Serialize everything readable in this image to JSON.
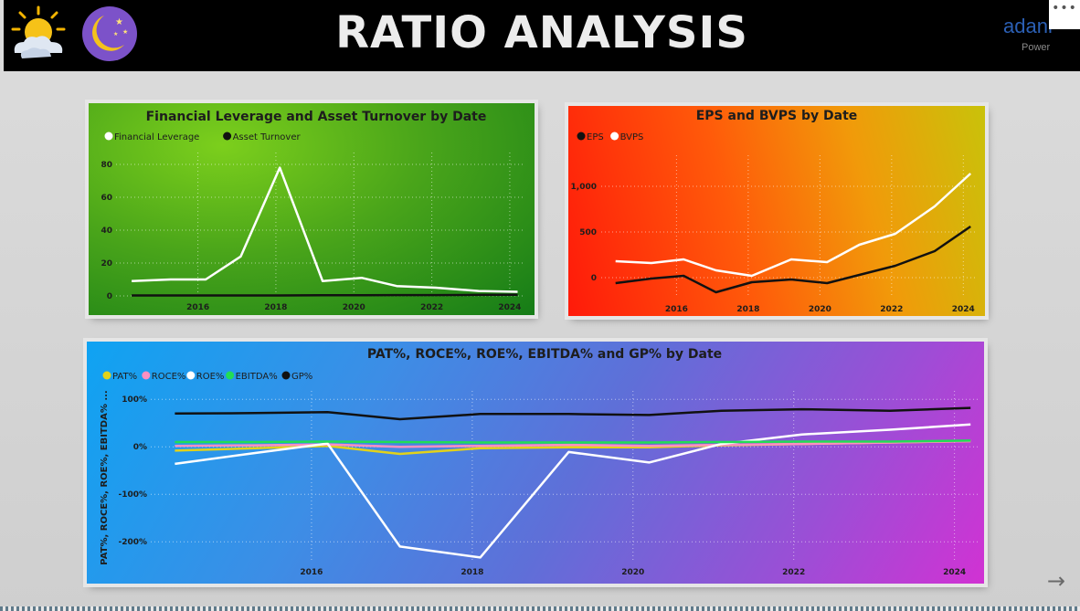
{
  "page": {
    "title": "RATIO ANALYSIS"
  },
  "header": {
    "left_icons": [
      "sun-cloud-icon",
      "moon-stars-icon"
    ],
    "logo": {
      "word": "adani",
      "sub": "Power"
    },
    "more_label": "•••"
  },
  "nav": {
    "next_label": "→"
  },
  "colors": {
    "header_bg": "#000000",
    "page_bg": "#d7d7d7",
    "lev_white": "#ffffff",
    "lev_black": "#111111",
    "pat": "#e2d21a",
    "roce": "#ff8fc1",
    "roe": "#ffffff",
    "ebitda": "#22dd55",
    "gp": "#111111"
  },
  "chart_data": [
    {
      "id": "lev",
      "type": "line",
      "title": "Financial Leverage and Asset Turnover by Date",
      "ylabel": "",
      "xlabel": "",
      "legend_position": "top-left",
      "grid": true,
      "x": [
        2014.3,
        2015.3,
        2016.2,
        2017.1,
        2018.1,
        2019.2,
        2020.2,
        2021.1,
        2022.1,
        2023.2,
        2024.2
      ],
      "xticks": [
        "2016",
        "2018",
        "2020",
        "2022",
        "2024"
      ],
      "xtick_values": [
        2016,
        2018,
        2020,
        2022,
        2024
      ],
      "xlim": [
        2013.9,
        2024.4
      ],
      "yticks": [
        "0",
        "20",
        "40",
        "60",
        "80"
      ],
      "ytick_values": [
        0,
        20,
        40,
        60,
        80
      ],
      "ylim": [
        0,
        85
      ],
      "series": [
        {
          "name": "Financial Leverage",
          "color": "#ffffff",
          "values": [
            9,
            10,
            10,
            24,
            78,
            9,
            11,
            6,
            5,
            3,
            2.5
          ]
        },
        {
          "name": "Asset Turnover",
          "color": "#111111",
          "values": [
            0.3,
            0.3,
            0.3,
            0.3,
            0.3,
            0.4,
            0.4,
            0.5,
            0.5,
            0.6,
            0.7
          ]
        }
      ]
    },
    {
      "id": "eps",
      "type": "line",
      "title": "EPS and BVPS by Date",
      "ylabel": "",
      "xlabel": "",
      "legend_position": "top-left",
      "grid": true,
      "x": [
        2014.3,
        2015.3,
        2016.2,
        2017.1,
        2018.1,
        2019.2,
        2020.2,
        2021.1,
        2022.1,
        2023.2,
        2024.2
      ],
      "xticks": [
        "2016",
        "2018",
        "2020",
        "2022",
        "2024"
      ],
      "xtick_values": [
        2016,
        2018,
        2020,
        2022,
        2024
      ],
      "xlim": [
        2013.9,
        2024.4
      ],
      "yticks": [
        "0",
        "500",
        "1,000"
      ],
      "ytick_values": [
        0,
        500,
        1000
      ],
      "ylim": [
        -200,
        1300
      ],
      "series": [
        {
          "name": "EPS",
          "color": "#111111",
          "values": [
            -60,
            -10,
            20,
            -160,
            -50,
            -20,
            -60,
            30,
            130,
            290,
            560
          ]
        },
        {
          "name": "BVPS",
          "color": "#ffffff",
          "values": [
            180,
            160,
            200,
            80,
            20,
            200,
            170,
            360,
            480,
            780,
            1140
          ]
        }
      ]
    },
    {
      "id": "pat",
      "type": "line",
      "title": "PAT%, ROCE%, ROE%, EBITDA% and GP% by Date",
      "ylabel": "PAT%, ROCE%, ROE%, EBITDA% ...",
      "xlabel": "",
      "legend_position": "top-left",
      "grid": true,
      "x": [
        2014.3,
        2015.3,
        2016.2,
        2017.1,
        2018.1,
        2019.2,
        2020.2,
        2021.1,
        2022.1,
        2023.2,
        2024.2
      ],
      "xticks": [
        "2016",
        "2018",
        "2020",
        "2022",
        "2024"
      ],
      "xtick_values": [
        2016,
        2018,
        2020,
        2022,
        2024
      ],
      "xlim": [
        2014.0,
        2024.3
      ],
      "yticks": [
        "100%",
        "0%",
        "-100%",
        "-200%"
      ],
      "ytick_values": [
        100,
        0,
        -100,
        -200
      ],
      "ylim": [
        -240,
        110
      ],
      "series": [
        {
          "name": "PAT%",
          "color": "#e2d21a",
          "values": [
            -8,
            -3,
            2,
            -15,
            -3,
            -1,
            -1,
            3,
            6,
            9,
            12
          ]
        },
        {
          "name": "ROCE%",
          "color": "#ff8fc1",
          "values": [
            2,
            3,
            5,
            0,
            2,
            4,
            2,
            4,
            6,
            9,
            12
          ]
        },
        {
          "name": "ROE%",
          "color": "#ffffff",
          "values": [
            -36,
            -13,
            7,
            -210,
            -233,
            -11,
            -33,
            6,
            26,
            36,
            47
          ]
        },
        {
          "name": "EBITDA%",
          "color": "#22dd55",
          "values": [
            10,
            10,
            11,
            10,
            9,
            9,
            9,
            10,
            11,
            11,
            13
          ]
        },
        {
          "name": "GP%",
          "color": "#111111",
          "values": [
            70,
            71,
            73,
            58,
            69,
            69,
            67,
            76,
            79,
            76,
            82
          ]
        }
      ]
    }
  ]
}
